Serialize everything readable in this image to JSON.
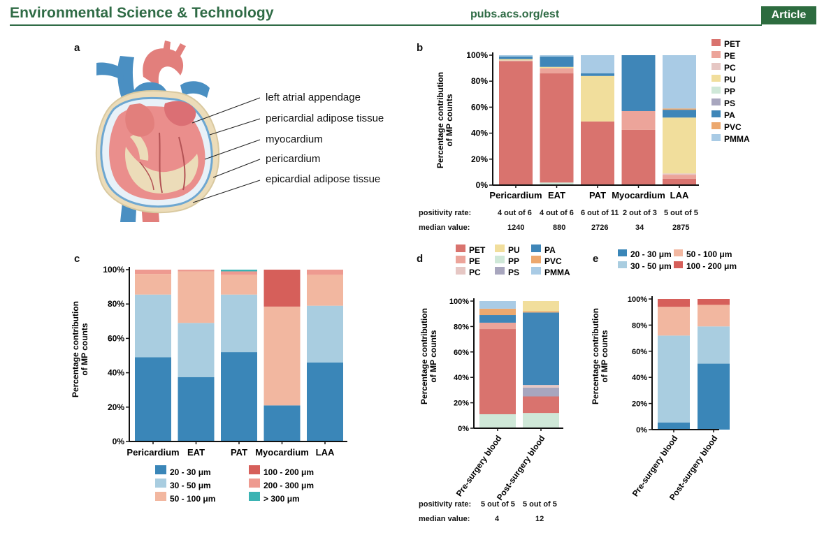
{
  "header": {
    "journal": "Environmental Science & Technology",
    "url": "pubs.acs.org/est",
    "badge": "Article"
  },
  "colors": {
    "PET": "#d9736e",
    "PE": "#eca49a",
    "PC": "#e6c7c4",
    "PU": "#f1de9c",
    "PP": "#cfe8d8",
    "PS": "#a8a6be",
    "PA": "#3f86b8",
    "PVC": "#eca86e",
    "PMMA": "#a9cbe5",
    "s20_30": "#3a86b8",
    "s30_50": "#a9cde0",
    "s50_100": "#f2b7a0",
    "s100_200": "#d65f5a",
    "s200_300": "#ee9a90",
    "s300": "#3bb3b3",
    "header": "#2f6b45"
  },
  "panel_a": {
    "label": "a",
    "labels": [
      "left atrial appendage",
      "pericardial adipose tissue",
      "myocardium",
      "pericardium",
      "epicardial adipose tissue"
    ]
  },
  "panel_b": {
    "label": "b",
    "positivity_label": "positivity rate:",
    "median_label": "median value:",
    "positivity": [
      "4 out of 6",
      "4 out of 6",
      "6 out of 11",
      "2 out of 3",
      "5 out of 5"
    ],
    "median": [
      "1240",
      "880",
      "2726",
      "34",
      "2875"
    ]
  },
  "panel_c": {
    "label": "c"
  },
  "panel_d": {
    "label": "d",
    "positivity_label": "positivity rate:",
    "median_label": "median value:",
    "positivity": [
      "5 out of 5",
      "5 out of 5"
    ],
    "median": [
      "4",
      "12"
    ]
  },
  "panel_e": {
    "label": "e"
  },
  "chart_data": [
    {
      "id": "b",
      "type": "bar",
      "stacked": true,
      "ylabel": "Percentage contribution of MP counts",
      "ylim": [
        0,
        100
      ],
      "yticks": [
        "0%",
        "20%",
        "40%",
        "60%",
        "80%",
        "100%"
      ],
      "categories": [
        "Pericardium",
        "EAT",
        "PAT",
        "Myocardium",
        "LAA"
      ],
      "legend": [
        "PET",
        "PE",
        "PC",
        "PU",
        "PP",
        "PS",
        "PA",
        "PVC",
        "PMMA"
      ],
      "series": [
        {
          "name": "PP",
          "values": [
            0,
            2,
            0,
            0,
            0
          ]
        },
        {
          "name": "PET",
          "values": [
            95.5,
            84,
            49,
            42.5,
            5
          ]
        },
        {
          "name": "PE",
          "values": [
            0,
            4,
            0,
            14.5,
            3
          ]
        },
        {
          "name": "PC",
          "values": [
            0.5,
            0,
            0,
            0,
            1
          ]
        },
        {
          "name": "PU",
          "values": [
            1,
            1,
            35,
            0,
            43
          ]
        },
        {
          "name": "PS",
          "values": [
            0,
            0,
            0,
            0,
            0
          ]
        },
        {
          "name": "PA",
          "values": [
            2,
            8,
            2,
            43,
            6
          ]
        },
        {
          "name": "PVC",
          "values": [
            0,
            0,
            0,
            0,
            1
          ]
        },
        {
          "name": "PMMA",
          "values": [
            1,
            1,
            14,
            0,
            41
          ]
        }
      ]
    },
    {
      "id": "c",
      "type": "bar",
      "stacked": true,
      "ylabel": "Percentage contribution of MP counts",
      "ylim": [
        0,
        100
      ],
      "yticks": [
        "0%",
        "20%",
        "40%",
        "60%",
        "80%",
        "100%"
      ],
      "categories": [
        "Pericardium",
        "EAT",
        "PAT",
        "Myocardium",
        "LAA"
      ],
      "legend": [
        "20 - 30 μm",
        "30 - 50 μm",
        "50 - 100 μm",
        "100 - 200 μm",
        "200 - 300 μm",
        "> 300 μm"
      ],
      "series": [
        {
          "name": "20 - 30 μm",
          "values": [
            49,
            37.5,
            52,
            21,
            46
          ]
        },
        {
          "name": "30 - 50 μm",
          "values": [
            36.5,
            31.5,
            33.5,
            0,
            33
          ]
        },
        {
          "name": "50 - 100 μm",
          "values": [
            12,
            30,
            11.5,
            57.5,
            18
          ]
        },
        {
          "name": "100 - 200 μm",
          "values": [
            0,
            0,
            0,
            21.5,
            0
          ]
        },
        {
          "name": "200 - 300 μm",
          "values": [
            2.5,
            1,
            2,
            0,
            3
          ]
        },
        {
          "name": "> 300 μm",
          "values": [
            0,
            0,
            1,
            0,
            0
          ]
        }
      ]
    },
    {
      "id": "d",
      "type": "bar",
      "stacked": true,
      "ylabel": "Percentage contribution of MP counts",
      "ylim": [
        0,
        100
      ],
      "yticks": [
        "0%",
        "20%",
        "40%",
        "60%",
        "80%",
        "100%"
      ],
      "categories": [
        "Pre-surgery blood",
        "Post-surgery blood"
      ],
      "legend": [
        "PET",
        "PU",
        "PA",
        "PE",
        "PP",
        "PVC",
        "PC",
        "PS",
        "PMMA"
      ],
      "series": [
        {
          "name": "PP",
          "values": [
            11,
            12
          ]
        },
        {
          "name": "PET",
          "values": [
            67,
            13
          ]
        },
        {
          "name": "PE",
          "values": [
            5,
            0
          ]
        },
        {
          "name": "PS",
          "values": [
            0,
            7
          ]
        },
        {
          "name": "PC",
          "values": [
            0,
            2
          ]
        },
        {
          "name": "PA",
          "values": [
            6,
            57
          ]
        },
        {
          "name": "PVC",
          "values": [
            5,
            1
          ]
        },
        {
          "name": "PU",
          "values": [
            0,
            8
          ]
        },
        {
          "name": "PMMA",
          "values": [
            6,
            0
          ]
        }
      ]
    },
    {
      "id": "e",
      "type": "bar",
      "stacked": true,
      "ylabel": "Percentage contribution of MP counts",
      "ylim": [
        0,
        100
      ],
      "yticks": [
        "0%",
        "20%",
        "40%",
        "60%",
        "80%",
        "100%"
      ],
      "categories": [
        "Pre-surgery blood",
        "Post-surgery blood"
      ],
      "legend": [
        "20 - 30 μm",
        "50 - 100 μm",
        "30 - 50 μm",
        "100 - 200 μm"
      ],
      "series": [
        {
          "name": "20 - 30 μm",
          "values": [
            5.5,
            50.5
          ]
        },
        {
          "name": "30 - 50 μm",
          "values": [
            66.5,
            28.5
          ]
        },
        {
          "name": "50 - 100 μm",
          "values": [
            22,
            16.5
          ]
        },
        {
          "name": "100 - 200 μm",
          "values": [
            6,
            4.5
          ]
        }
      ]
    }
  ]
}
